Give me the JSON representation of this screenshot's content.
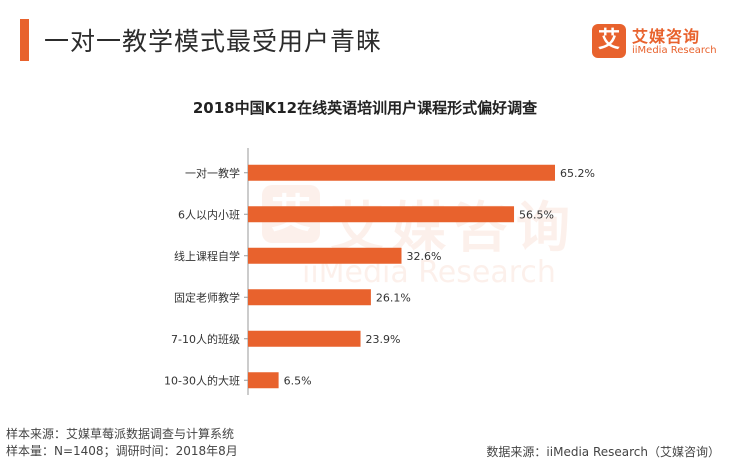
{
  "header": {
    "title": "一对一教学模式最受用户青睐",
    "brand_mark": "艾",
    "brand_cn": "艾媒咨询",
    "brand_en": "iiMedia Research"
  },
  "watermark": {
    "mark": "艾",
    "cn": "艾媒咨询",
    "en": "iiMedia Research"
  },
  "colors": {
    "accent": "#e8622d",
    "bar": "#e8622d",
    "axis": "#999999"
  },
  "chart_data": {
    "type": "bar",
    "orientation": "horizontal",
    "title": "2018中国K12在线英语培训用户课程形式偏好调查",
    "categories": [
      "一对一教学",
      "6人以内小班",
      "线上课程自学",
      "固定老师教学",
      "7-10人的班级",
      "10-30人的大班"
    ],
    "values": [
      65.2,
      56.5,
      32.6,
      26.1,
      23.9,
      6.5
    ],
    "value_labels": [
      "65.2%",
      "56.5%",
      "32.6%",
      "26.1%",
      "23.9%",
      "6.5%"
    ],
    "unit": "%",
    "xlim": [
      0,
      65.2
    ],
    "xlabel": "",
    "ylabel": ""
  },
  "footer": {
    "sample_source": "样本来源：艾媒草莓派数据调查与计算系统",
    "sample_info": "样本量：N=1408；调研时间：2018年8月",
    "data_source": "数据来源：iiMedia Research（艾媒咨询）"
  }
}
